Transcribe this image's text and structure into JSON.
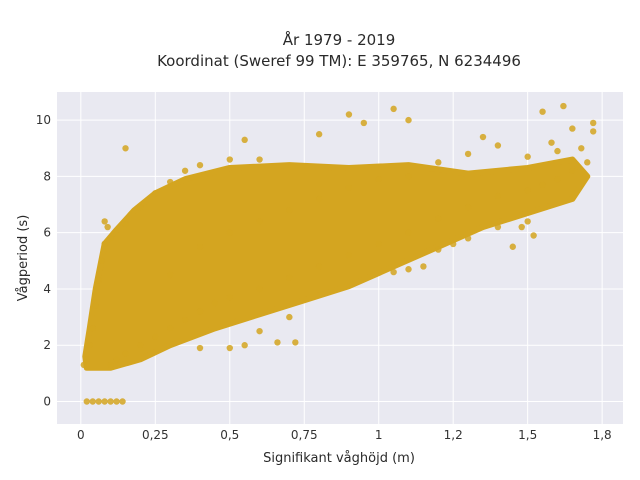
{
  "chart_data": {
    "type": "scatter",
    "title_line1": "År 1979 - 2019",
    "title_line2": "Koordinat (Sweref 99 TM): E 359765, N 6234496",
    "xlabel": "Signifikant våghöjd (m)",
    "ylabel": "Vågperiod (s)",
    "xlim": [
      -0.08,
      1.82
    ],
    "ylim": [
      -0.8,
      11.0
    ],
    "x_ticks": [
      0,
      0.25,
      0.5,
      0.75,
      1.0,
      1.25,
      1.5,
      1.75
    ],
    "x_tick_labels": [
      "0",
      "0,25",
      "0,5",
      "0,75",
      "1",
      "1,2",
      "1,5",
      "1,8"
    ],
    "y_ticks": [
      0,
      2,
      4,
      6,
      8,
      10
    ],
    "y_tick_labels": [
      "0",
      "2",
      "4",
      "6",
      "8",
      "10"
    ],
    "grid": true,
    "point_color": "#D4A520",
    "plot_background": "#E9E9F1",
    "series": [
      {
        "points": [
          [
            0.02,
            0
          ],
          [
            0.04,
            0
          ],
          [
            0.06,
            0
          ],
          [
            0.08,
            0
          ],
          [
            0.1,
            0
          ],
          [
            0.12,
            0
          ],
          [
            0.14,
            0
          ],
          [
            0.01,
            1.3
          ],
          [
            0.02,
            1.5
          ],
          [
            0.03,
            2.0
          ],
          [
            0.04,
            2.6
          ],
          [
            0.05,
            3.4
          ],
          [
            0.06,
            4.3
          ],
          [
            0.07,
            5.0
          ],
          [
            0.08,
            5.6
          ],
          [
            0.09,
            6.2
          ],
          [
            0.08,
            6.4
          ],
          [
            0.1,
            1.3
          ],
          [
            0.12,
            1.5
          ],
          [
            0.15,
            1.7
          ],
          [
            0.2,
            2.0
          ],
          [
            0.25,
            2.3
          ],
          [
            0.3,
            2.6
          ],
          [
            0.35,
            2.9
          ],
          [
            0.4,
            3.2
          ],
          [
            0.45,
            3.5
          ],
          [
            0.1,
            5.8
          ],
          [
            0.15,
            6.3
          ],
          [
            0.2,
            6.9
          ],
          [
            0.25,
            7.4
          ],
          [
            0.3,
            7.8
          ],
          [
            0.35,
            8.2
          ],
          [
            0.4,
            8.4
          ],
          [
            0.5,
            8.6
          ],
          [
            0.6,
            8.6
          ],
          [
            0.3,
            4.5
          ],
          [
            0.4,
            5.5
          ],
          [
            0.5,
            6.0
          ],
          [
            0.6,
            6.4
          ],
          [
            0.7,
            6.8
          ],
          [
            0.8,
            7.2
          ],
          [
            0.9,
            7.6
          ],
          [
            1.0,
            7.9
          ],
          [
            1.1,
            8.0
          ],
          [
            0.5,
            3.7
          ],
          [
            0.6,
            4.0
          ],
          [
            0.7,
            4.4
          ],
          [
            0.8,
            4.8
          ],
          [
            0.9,
            5.2
          ],
          [
            1.0,
            5.6
          ],
          [
            1.1,
            6.0
          ],
          [
            1.2,
            6.5
          ],
          [
            1.3,
            6.9
          ],
          [
            0.55,
            2.0
          ],
          [
            0.6,
            2.5
          ],
          [
            0.7,
            3.0
          ],
          [
            0.72,
            2.1
          ],
          [
            0.4,
            1.9
          ],
          [
            0.5,
            1.9
          ],
          [
            1.05,
            4.6
          ],
          [
            1.1,
            4.7
          ],
          [
            1.15,
            4.8
          ],
          [
            1.2,
            5.4
          ],
          [
            1.25,
            5.6
          ],
          [
            1.3,
            5.8
          ],
          [
            1.4,
            6.2
          ],
          [
            1.45,
            5.5
          ],
          [
            1.5,
            6.4
          ],
          [
            1.2,
            8.5
          ],
          [
            1.3,
            8.8
          ],
          [
            1.4,
            9.1
          ],
          [
            1.5,
            8.7
          ],
          [
            1.6,
            8.9
          ],
          [
            1.68,
            9.0
          ],
          [
            1.72,
            9.6
          ],
          [
            1.4,
            7.3
          ],
          [
            1.5,
            7.5
          ],
          [
            1.55,
            7.7
          ],
          [
            1.6,
            7.9
          ],
          [
            1.65,
            8.2
          ],
          [
            1.7,
            8.5
          ],
          [
            0.8,
            9.5
          ],
          [
            0.95,
            9.9
          ],
          [
            1.05,
            10.4
          ],
          [
            1.1,
            10.0
          ],
          [
            0.9,
            10.2
          ],
          [
            1.55,
            10.3
          ],
          [
            1.72,
            9.9
          ],
          [
            1.65,
            9.7
          ],
          [
            0.15,
            9.0
          ],
          [
            0.55,
            9.3
          ],
          [
            1.35,
            9.4
          ],
          [
            1.58,
            9.2
          ],
          [
            1.48,
            6.2
          ],
          [
            1.52,
            5.9
          ],
          [
            0.66,
            2.1
          ],
          [
            1.62,
            10.5
          ]
        ]
      }
    ]
  }
}
